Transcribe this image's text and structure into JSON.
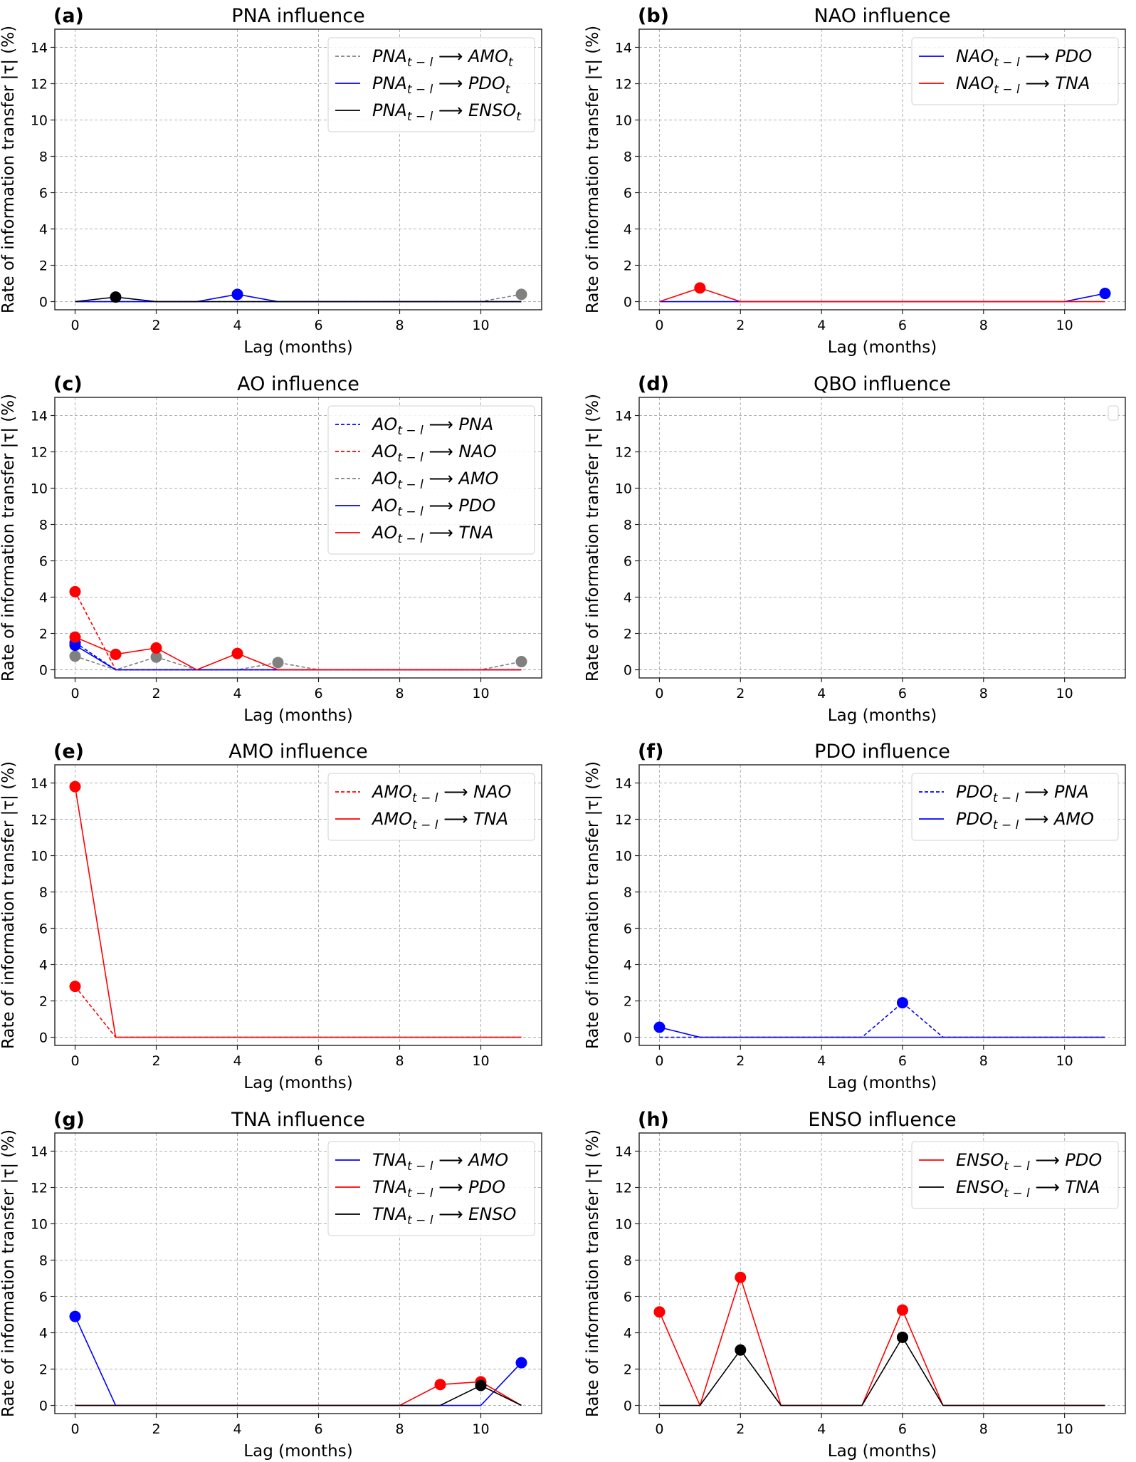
{
  "figure": {
    "xlabel": "Lag (months)",
    "ylabel": "Rate of information transfer |τ| (%)"
  },
  "colors": {
    "gray": "#808080",
    "blue": "#0000ff",
    "red": "#ff0000",
    "black": "#000000",
    "grid": "#b0b0b0",
    "axis": "#222222"
  },
  "chart_data": [
    {
      "panel": "(a)",
      "type": "line",
      "title": "PNA influence",
      "xlabel": "Lag (months)",
      "ylabel": "Rate of information transfer |τ| (%)",
      "xlim": [
        -0.5,
        11.5
      ],
      "ylim": [
        -0.45,
        15
      ],
      "xticks": [
        0,
        2,
        4,
        6,
        8,
        10
      ],
      "yticks": [
        0,
        2,
        4,
        6,
        8,
        10,
        12,
        14
      ],
      "grid": true,
      "legend_position": "top-right",
      "x": [
        0,
        1,
        2,
        3,
        4,
        5,
        6,
        7,
        8,
        9,
        10,
        11
      ],
      "series": [
        {
          "name": "PNA_{t-l} ⟶ AMO_t",
          "source": "PNA",
          "target": "AMO",
          "target_sub": "t",
          "color": "gray",
          "dash": true,
          "values": [
            0,
            0,
            0,
            0,
            0,
            0,
            0,
            0,
            0,
            0,
            0,
            0.4
          ],
          "markers": [
            11
          ]
        },
        {
          "name": "PNA_{t-l} ⟶ PDO_t",
          "source": "PNA",
          "target": "PDO",
          "target_sub": "t",
          "color": "blue",
          "dash": false,
          "values": [
            0,
            0,
            0,
            0,
            0.4,
            0,
            0,
            0,
            0,
            0,
            0,
            0
          ],
          "markers": [
            4
          ]
        },
        {
          "name": "PNA_{t-l} ⟶ ENSO_t",
          "source": "PNA",
          "target": "ENSO",
          "target_sub": "t",
          "color": "black",
          "dash": false,
          "values": [
            0,
            0.25,
            0,
            0,
            0,
            0,
            0,
            0,
            0,
            0,
            0,
            0
          ],
          "markers": [
            1
          ]
        }
      ]
    },
    {
      "panel": "(b)",
      "type": "line",
      "title": "NAO influence",
      "xlabel": "Lag (months)",
      "ylabel": "Rate of information transfer |τ| (%)",
      "xlim": [
        -0.5,
        11.5
      ],
      "ylim": [
        -0.45,
        15
      ],
      "xticks": [
        0,
        2,
        4,
        6,
        8,
        10
      ],
      "yticks": [
        0,
        2,
        4,
        6,
        8,
        10,
        12,
        14
      ],
      "grid": true,
      "legend_position": "top-right",
      "x": [
        0,
        1,
        2,
        3,
        4,
        5,
        6,
        7,
        8,
        9,
        10,
        11
      ],
      "series": [
        {
          "name": "NAO_{t-l} ⟶ PDO",
          "source": "NAO",
          "target": "PDO",
          "target_sub": "",
          "color": "blue",
          "dash": false,
          "values": [
            0,
            0,
            0,
            0,
            0,
            0,
            0,
            0,
            0,
            0,
            0,
            0.45
          ],
          "markers": [
            11
          ]
        },
        {
          "name": "NAO_{t-l} ⟶ TNA",
          "source": "NAO",
          "target": "TNA",
          "target_sub": "",
          "color": "red",
          "dash": false,
          "values": [
            0,
            0.75,
            0,
            0,
            0,
            0,
            0,
            0,
            0,
            0,
            0,
            0
          ],
          "markers": [
            1
          ]
        }
      ]
    },
    {
      "panel": "(c)",
      "type": "line",
      "title": "AO influence",
      "xlabel": "Lag (months)",
      "ylabel": "Rate of information transfer |τ| (%)",
      "xlim": [
        -0.5,
        11.5
      ],
      "ylim": [
        -0.45,
        15
      ],
      "xticks": [
        0,
        2,
        4,
        6,
        8,
        10
      ],
      "yticks": [
        0,
        2,
        4,
        6,
        8,
        10,
        12,
        14
      ],
      "grid": true,
      "legend_position": "top-right",
      "x": [
        0,
        1,
        2,
        3,
        4,
        5,
        6,
        7,
        8,
        9,
        10,
        11
      ],
      "series": [
        {
          "name": "AO_{t-l} ⟶ PNA",
          "source": "AO",
          "target": "PNA",
          "target_sub": "",
          "color": "blue",
          "dash": true,
          "values": [
            1.5,
            0,
            0,
            0,
            0,
            0,
            0,
            0,
            0,
            0,
            0,
            0
          ],
          "markers": [
            0
          ]
        },
        {
          "name": "AO_{t-l} ⟶ NAO",
          "source": "AO",
          "target": "NAO",
          "target_sub": "",
          "color": "red",
          "dash": true,
          "values": [
            4.3,
            0,
            0,
            0,
            0,
            0,
            0,
            0,
            0,
            0,
            0,
            0
          ],
          "markers": [
            0
          ]
        },
        {
          "name": "AO_{t-l} ⟶ AMO",
          "source": "AO",
          "target": "AMO",
          "target_sub": "",
          "color": "gray",
          "dash": true,
          "values": [
            0.75,
            0,
            0.7,
            0,
            0,
            0.4,
            0,
            0,
            0,
            0,
            0,
            0.45
          ],
          "markers": [
            0,
            2,
            5,
            11
          ]
        },
        {
          "name": "AO_{t-l} ⟶ PDO",
          "source": "AO",
          "target": "PDO",
          "target_sub": "",
          "color": "blue",
          "dash": false,
          "values": [
            1.35,
            0,
            0,
            0,
            0,
            0,
            0,
            0,
            0,
            0,
            0,
            0
          ],
          "markers": [
            0
          ]
        },
        {
          "name": "AO_{t-l} ⟶ TNA",
          "source": "AO",
          "target": "TNA",
          "target_sub": "",
          "color": "red",
          "dash": false,
          "values": [
            1.8,
            0.85,
            1.2,
            0,
            0.9,
            0,
            0,
            0,
            0,
            0,
            0,
            0
          ],
          "markers": [
            0,
            1,
            2,
            4
          ]
        }
      ]
    },
    {
      "panel": "(d)",
      "type": "line",
      "title": "QBO influence",
      "xlabel": "Lag (months)",
      "ylabel": "Rate of information transfer |τ| (%)",
      "xlim": [
        -0.5,
        11.5
      ],
      "ylim": [
        -0.45,
        15
      ],
      "xticks": [
        0,
        2,
        4,
        6,
        8,
        10
      ],
      "yticks": [
        0,
        2,
        4,
        6,
        8,
        10,
        12,
        14
      ],
      "grid": true,
      "legend_position": "top-right",
      "legend_empty": true,
      "x": [
        0,
        1,
        2,
        3,
        4,
        5,
        6,
        7,
        8,
        9,
        10,
        11
      ],
      "series": []
    },
    {
      "panel": "(e)",
      "type": "line",
      "title": "AMO influence",
      "xlabel": "Lag (months)",
      "ylabel": "Rate of information transfer |τ| (%)",
      "xlim": [
        -0.5,
        11.5
      ],
      "ylim": [
        -0.45,
        15
      ],
      "xticks": [
        0,
        2,
        4,
        6,
        8,
        10
      ],
      "yticks": [
        0,
        2,
        4,
        6,
        8,
        10,
        12,
        14
      ],
      "grid": true,
      "legend_position": "top-right",
      "x": [
        0,
        1,
        2,
        3,
        4,
        5,
        6,
        7,
        8,
        9,
        10,
        11
      ],
      "series": [
        {
          "name": "AMO_{t-l} ⟶ NAO",
          "source": "AMO",
          "target": "NAO",
          "target_sub": "",
          "color": "red",
          "dash": true,
          "values": [
            2.8,
            0,
            0,
            0,
            0,
            0,
            0,
            0,
            0,
            0,
            0,
            0
          ],
          "markers": [
            0
          ]
        },
        {
          "name": "AMO_{t-l} ⟶ TNA",
          "source": "AMO",
          "target": "TNA",
          "target_sub": "",
          "color": "red",
          "dash": false,
          "values": [
            13.8,
            0,
            0,
            0,
            0,
            0,
            0,
            0,
            0,
            0,
            0,
            0
          ],
          "markers": [
            0
          ]
        }
      ]
    },
    {
      "panel": "(f)",
      "type": "line",
      "title": "PDO influence",
      "xlabel": "Lag (months)",
      "ylabel": "Rate of information transfer |τ| (%)",
      "xlim": [
        -0.5,
        11.5
      ],
      "ylim": [
        -0.45,
        15
      ],
      "xticks": [
        0,
        2,
        4,
        6,
        8,
        10
      ],
      "yticks": [
        0,
        2,
        4,
        6,
        8,
        10,
        12,
        14
      ],
      "grid": true,
      "legend_position": "top-right",
      "x": [
        0,
        1,
        2,
        3,
        4,
        5,
        6,
        7,
        8,
        9,
        10,
        11
      ],
      "series": [
        {
          "name": "PDO_{t-l} ⟶ PNA",
          "source": "PDO",
          "target": "PNA",
          "target_sub": "",
          "color": "blue",
          "dash": true,
          "values": [
            0,
            0,
            0,
            0,
            0,
            0,
            1.9,
            0,
            0,
            0,
            0,
            0
          ],
          "markers": [
            6
          ]
        },
        {
          "name": "PDO_{t-l} ⟶ AMO",
          "source": "PDO",
          "target": "AMO",
          "target_sub": "",
          "color": "blue",
          "dash": false,
          "values": [
            0.55,
            0,
            0,
            0,
            0,
            0,
            0,
            0,
            0,
            0,
            0,
            0
          ],
          "markers": [
            0
          ]
        }
      ]
    },
    {
      "panel": "(g)",
      "type": "line",
      "title": "TNA influence",
      "xlabel": "Lag (months)",
      "ylabel": "Rate of information transfer |τ| (%)",
      "xlim": [
        -0.5,
        11.5
      ],
      "ylim": [
        -0.45,
        15
      ],
      "xticks": [
        0,
        2,
        4,
        6,
        8,
        10
      ],
      "yticks": [
        0,
        2,
        4,
        6,
        8,
        10,
        12,
        14
      ],
      "grid": true,
      "legend_position": "top-right",
      "x": [
        0,
        1,
        2,
        3,
        4,
        5,
        6,
        7,
        8,
        9,
        10,
        11
      ],
      "series": [
        {
          "name": "TNA_{t-l} ⟶ AMO",
          "source": "TNA",
          "target": "AMO",
          "target_sub": "",
          "color": "blue",
          "dash": false,
          "values": [
            4.9,
            0,
            0,
            0,
            0,
            0,
            0,
            0,
            0,
            0,
            0,
            2.35
          ],
          "markers": [
            0,
            11
          ]
        },
        {
          "name": "TNA_{t-l} ⟶ PDO",
          "source": "TNA",
          "target": "PDO",
          "target_sub": "",
          "color": "red",
          "dash": false,
          "values": [
            0,
            0,
            0,
            0,
            0,
            0,
            0,
            0,
            0,
            1.15,
            1.3,
            0
          ],
          "markers": [
            9,
            10
          ]
        },
        {
          "name": "TNA_{t-l} ⟶ ENSO",
          "source": "TNA",
          "target": "ENSO",
          "target_sub": "",
          "color": "black",
          "dash": false,
          "values": [
            0,
            0,
            0,
            0,
            0,
            0,
            0,
            0,
            0,
            0,
            1.1,
            0
          ],
          "markers": [
            10
          ]
        }
      ]
    },
    {
      "panel": "(h)",
      "type": "line",
      "title": "ENSO influence",
      "xlabel": "Lag (months)",
      "ylabel": "Rate of information transfer |τ| (%)",
      "xlim": [
        -0.5,
        11.5
      ],
      "ylim": [
        -0.45,
        15
      ],
      "xticks": [
        0,
        2,
        4,
        6,
        8,
        10
      ],
      "yticks": [
        0,
        2,
        4,
        6,
        8,
        10,
        12,
        14
      ],
      "grid": true,
      "legend_position": "top-right",
      "x": [
        0,
        1,
        2,
        3,
        4,
        5,
        6,
        7,
        8,
        9,
        10,
        11
      ],
      "series": [
        {
          "name": "ENSO_{t-l} ⟶ PDO",
          "source": "ENSO",
          "target": "PDO",
          "target_sub": "",
          "color": "red",
          "dash": false,
          "values": [
            5.15,
            0,
            7.05,
            0,
            0,
            0,
            5.25,
            0,
            0,
            0,
            0,
            0
          ],
          "markers": [
            0,
            2,
            6
          ]
        },
        {
          "name": "ENSO_{t-l} ⟶ TNA",
          "source": "ENSO",
          "target": "TNA",
          "target_sub": "",
          "color": "black",
          "dash": false,
          "values": [
            0,
            0,
            3.05,
            0,
            0,
            0,
            3.75,
            0,
            0,
            0,
            0,
            0
          ],
          "markers": [
            2,
            6
          ]
        }
      ]
    }
  ]
}
